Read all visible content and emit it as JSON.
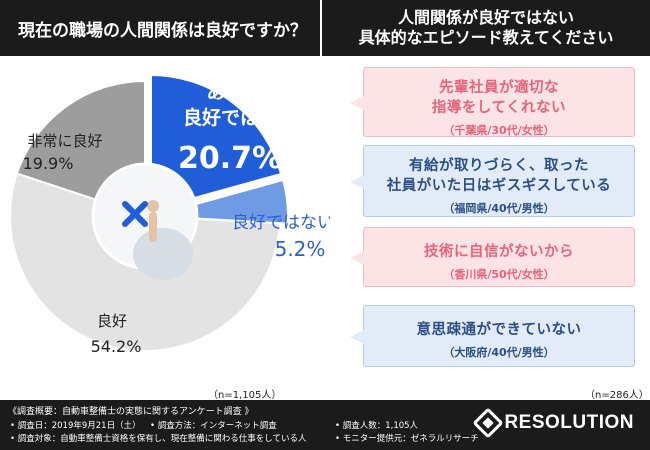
{
  "header": {
    "left_title": "現在の職場の人間関係は良好ですか？",
    "right_title_line1": "人間関係が良好ではない",
    "right_title_line2": "具体的なエピソード教えてください"
  },
  "chart_data": {
    "type": "pie",
    "title": "現在の職場の人間関係は良好ですか？",
    "sample_note": "（n=1,105人）",
    "slices": [
      {
        "label_line1": "あまり",
        "label_line2": "良好ではない",
        "value": 20.7,
        "value_text": "20.7%",
        "color": "#1f5ed8"
      },
      {
        "label_line1": "良好ではない",
        "label_line2": "",
        "value": 5.2,
        "value_text": "5.2%",
        "color": "#6e9be3"
      },
      {
        "label_line1": "良好",
        "label_line2": "",
        "value": 54.2,
        "value_text": "54.2%",
        "color": "#e3e3e3"
      },
      {
        "label_line1": "非常に良好",
        "label_line2": "",
        "value": 19.9,
        "value_text": "19.9%",
        "color": "#9d9d9d"
      }
    ]
  },
  "center": {
    "icon": "cross-mark-icon",
    "icon_color": "#1f5ed8"
  },
  "episodes": {
    "sample_note": "（n=286人）",
    "items": [
      {
        "line1": "先輩社員が適切な",
        "line2": "指導をしてくれない",
        "who": "（千葉県/30代/女性）",
        "style": "pink"
      },
      {
        "line1": "有給が取りづらく、取った",
        "line2": "社員がいた日はギスギスしている",
        "who": "（福岡県/40代/男性）",
        "style": "blue"
      },
      {
        "line1": "技術に自信がないから",
        "line2": "",
        "who": "（香川県/50代/女性）",
        "style": "pink"
      },
      {
        "line1": "意思疎通ができていない",
        "line2": "",
        "who": "（大阪府/40代/男性）",
        "style": "blue"
      }
    ]
  },
  "footer": {
    "survey_title": "《調査概要：自動車整備士の実態に関するアンケート調査 》",
    "rows": [
      "• 調査日：2019年9月21日（土）",
      "• 調査方法：インターネット調査",
      "• 調査人数：1,105人",
      "• 調査対象：自動車整備士資格を保有し、現在整備に関わる仕事をしている人",
      "• モニター提供元：ゼネラルリサーチ"
    ],
    "logo_text": "RESOLUTION"
  }
}
